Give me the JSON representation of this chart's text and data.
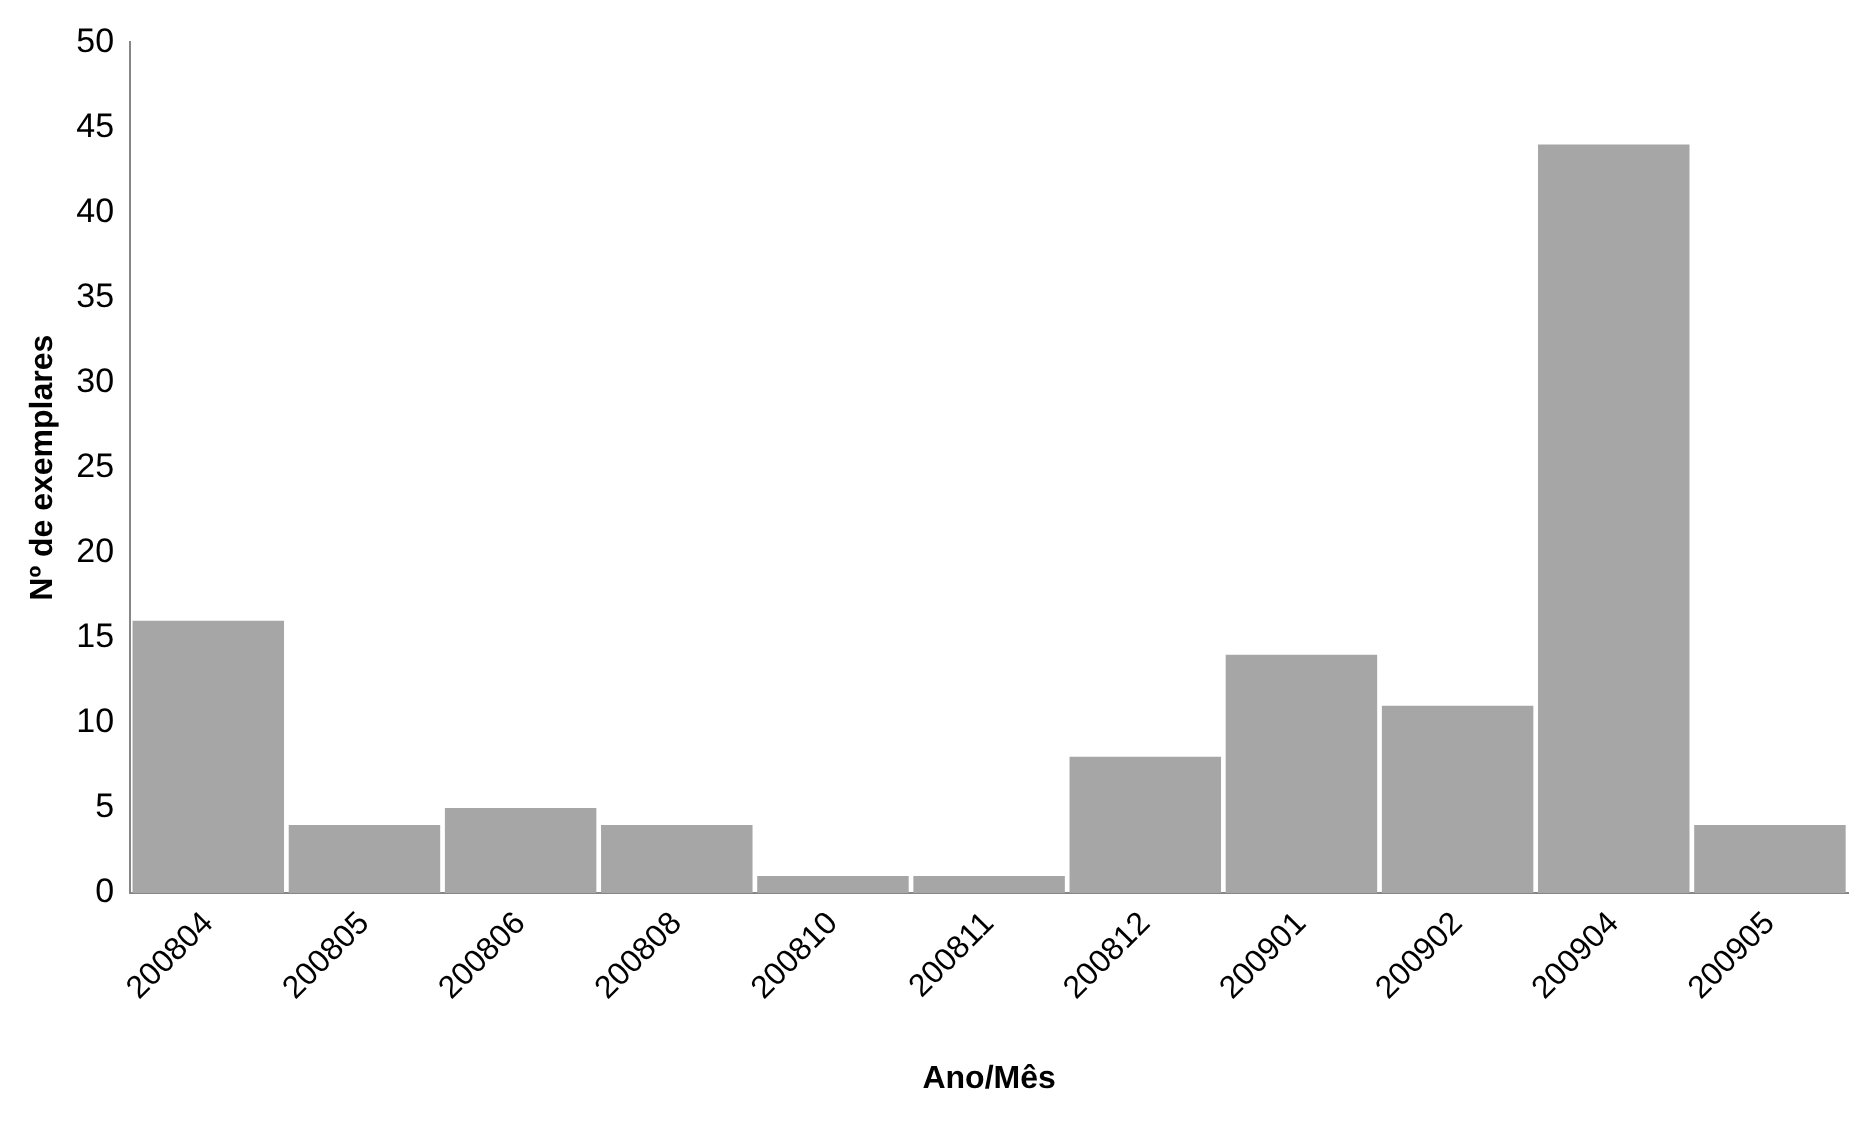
{
  "chart_data": {
    "type": "bar",
    "xlabel": "Ano/Mês",
    "ylabel": "Nº de exemplares",
    "categories": [
      "200804",
      "200805",
      "200806",
      "200808",
      "200810",
      "200811",
      "200812",
      "200901",
      "200902",
      "200904",
      "200905"
    ],
    "values": [
      16,
      4,
      5,
      4,
      1,
      1,
      8,
      14,
      11,
      44,
      4
    ],
    "color": "#a6a6a6",
    "ylim": [
      0,
      50
    ],
    "yticks": [
      0,
      5,
      10,
      15,
      20,
      25,
      30,
      35,
      40,
      45,
      50
    ],
    "grid": false,
    "legend": false
  }
}
